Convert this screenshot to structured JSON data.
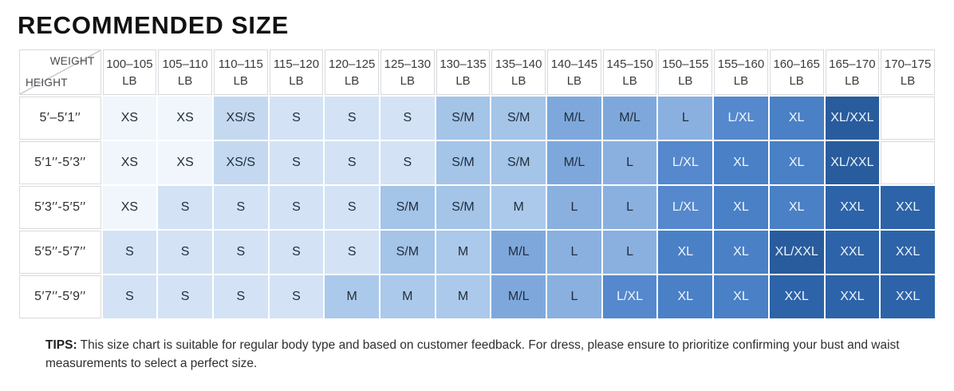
{
  "title": "RECOMMENDED SIZE",
  "corner": {
    "top": "WEIGHT",
    "bottom": "HEIGHT"
  },
  "weight_unit": "LB",
  "chart_data": {
    "type": "table",
    "title": "RECOMMENDED SIZE",
    "column_axis_label": "WEIGHT",
    "row_axis_label": "HEIGHT",
    "columns_weight_lb": [
      "100–105",
      "105–110",
      "110–115",
      "115–120",
      "120–125",
      "125–130",
      "130–135",
      "135–140",
      "140–145",
      "145–150",
      "150–155",
      "155–160",
      "160–165",
      "165–170",
      "170–175"
    ],
    "row_heights": [
      "5′–5′1′′",
      "5′1′′-5′3′′",
      "5′3′′-5′5′′",
      "5′5′′-5′7′′",
      "5′7′′-5′9′′"
    ],
    "cells": [
      [
        "XS",
        "XS",
        "XS/S",
        "S",
        "S",
        "S",
        "S/M",
        "S/M",
        "M/L",
        "M/L",
        "L",
        "L/XL",
        "XL",
        "XL/XXL",
        ""
      ],
      [
        "XS",
        "XS",
        "XS/S",
        "S",
        "S",
        "S",
        "S/M",
        "S/M",
        "M/L",
        "L",
        "L/XL",
        "XL",
        "XL",
        "XL/XXL",
        ""
      ],
      [
        "XS",
        "S",
        "S",
        "S",
        "S",
        "S/M",
        "S/M",
        "M",
        "L",
        "L",
        "L/XL",
        "XL",
        "XL",
        "XXL",
        "XXL"
      ],
      [
        "S",
        "S",
        "S",
        "S",
        "S",
        "S/M",
        "M",
        "M/L",
        "L",
        "L",
        "XL",
        "XL",
        "XL/XXL",
        "XXL",
        "XXL"
      ],
      [
        "S",
        "S",
        "S",
        "S",
        "M",
        "M",
        "M",
        "M/L",
        "L",
        "L/XL",
        "XL",
        "XL",
        "XXL",
        "XXL",
        "XXL"
      ]
    ]
  },
  "size_colors": {
    "XS": "#f0f6fc",
    "XS/S": "#c4d9f0",
    "S": "#d3e3f5",
    "S/M": "#a4c4e8",
    "M": "#abc9ea",
    "M/L": "#7ea8dc",
    "L": "#8ab0e0",
    "L/XL": "#5588cd",
    "XL": "#4a80c6",
    "XL/XXL": "#295c9d",
    "XXL": "#2d63a8",
    "dark_text": "#222e3d",
    "light_text": "#f2f7fd"
  },
  "tips": {
    "label": "TIPS:",
    "text": "This size chart is suitable for regular body type and based on customer feedback. For dress, please ensure to prioritize confirming your bust and waist measurements to select a perfect size."
  }
}
